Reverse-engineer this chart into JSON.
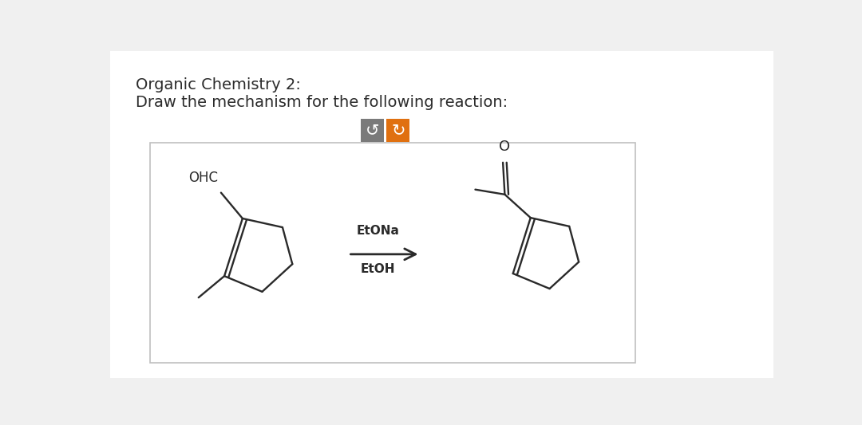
{
  "title1": "Organic Chemistry 2:",
  "title2": "Draw the mechanism for the following reaction:",
  "bg_color": "#f5f5f5",
  "text_color": "#2b2b2b",
  "box_border": "#c0c0c0",
  "btn1_color": "#7a7a7a",
  "btn2_color": "#e07010",
  "reagent_line1": "EtONa",
  "reagent_line2": "EtOH",
  "line_color": "#2a2a2a",
  "line_width": 1.7,
  "ohc_label": "OHC",
  "oxygen_label": "O"
}
